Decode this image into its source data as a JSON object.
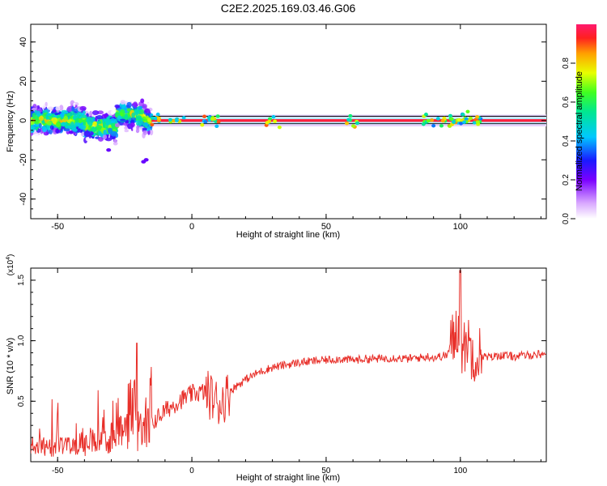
{
  "title": "C2E2.2025.169.03.46.G06",
  "chart_data": [
    {
      "type": "heatmap",
      "xlabel": "Height of straight line (km)",
      "ylabel": "Frequency (Hz)",
      "xlim": [
        -60,
        132
      ],
      "ylim": [
        -50,
        49
      ],
      "xticks": [
        -50,
        0,
        50,
        100
      ],
      "yticks": [
        40,
        20,
        0,
        -20,
        -40
      ],
      "colorbar": {
        "label": "Normalized spectral amplitude",
        "range": [
          0,
          1
        ],
        "ticks": [
          "0.0",
          "0.2",
          "0.4",
          "0.6",
          "0.8"
        ],
        "colormap": "rainbow"
      },
      "features": {
        "carrier_line_frequency": 0,
        "noisy_region_km": [
          -60,
          -15
        ],
        "noise_spread_hz": 12,
        "stable_region_km": [
          -15,
          132
        ],
        "disturbance_km": [
          93,
          107
        ]
      }
    },
    {
      "type": "line",
      "xlabel": "Height of straight line (km)",
      "ylabel": "SNR (10 * v/v)",
      "y_multiplier": "(x10^4)",
      "xlim": [
        -60,
        132
      ],
      "ylim": [
        0,
        1.6
      ],
      "xticks": [
        -50,
        0,
        50,
        100
      ],
      "yticks": [
        "0.5",
        "1.0",
        "1.5"
      ],
      "series": [
        {
          "color": "#e8302a",
          "x": [
            -60,
            -55,
            -50,
            -45,
            -40,
            -35,
            -30,
            -28,
            -25,
            -22,
            -20,
            -15,
            -10,
            -5,
            0,
            5,
            8,
            10,
            12,
            15,
            20,
            25,
            30,
            35,
            40,
            45,
            50,
            55,
            60,
            65,
            70,
            75,
            80,
            85,
            88,
            90,
            95,
            98,
            100,
            101,
            102,
            104,
            106,
            108,
            110,
            115,
            120,
            125,
            130,
            132
          ],
          "y": [
            0.15,
            0.12,
            0.12,
            0.14,
            0.15,
            0.17,
            0.2,
            0.32,
            0.3,
            0.3,
            0.28,
            0.32,
            0.42,
            0.5,
            0.56,
            0.58,
            0.52,
            0.48,
            0.52,
            0.6,
            0.68,
            0.74,
            0.78,
            0.8,
            0.82,
            0.83,
            0.84,
            0.85,
            0.84,
            0.85,
            0.85,
            0.86,
            0.85,
            0.86,
            0.87,
            0.86,
            0.88,
            1.05,
            1.2,
            0.8,
            1.05,
            0.92,
            0.9,
            0.88,
            0.86,
            0.88,
            0.87,
            0.88,
            0.89,
            0.89
          ]
        }
      ]
    }
  ]
}
